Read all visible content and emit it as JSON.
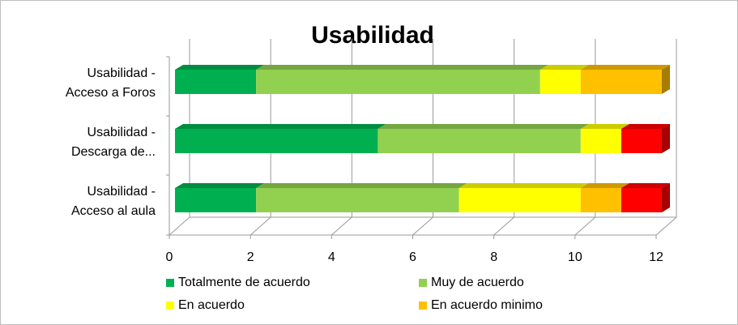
{
  "chart_data": {
    "type": "bar3d_stacked_horizontal",
    "title": "Usabilidad",
    "categories": [
      "Usabilidad - Acceso a Foros",
      "Usabilidad - Descarga de...",
      "Usabilidad - Acceso al aula"
    ],
    "series": [
      {
        "name": "Totalmente de acuerdo",
        "color": "#00b050",
        "values": [
          2,
          5,
          2
        ]
      },
      {
        "name": "Muy de acuerdo",
        "color": "#92d050",
        "values": [
          7,
          5,
          5
        ]
      },
      {
        "name": "En acuerdo",
        "color": "#ffff00",
        "values": [
          1,
          1,
          3
        ]
      },
      {
        "name": "En acuerdo minimo",
        "color": "#ffc000",
        "values": [
          2,
          0,
          1
        ]
      },
      {
        "color": "#ff0000",
        "values": [
          0,
          1,
          1
        ]
      }
    ],
    "xlim": [
      0,
      12
    ],
    "xticks": [
      0,
      2,
      4,
      6,
      8,
      10,
      12
    ],
    "grid": true
  }
}
